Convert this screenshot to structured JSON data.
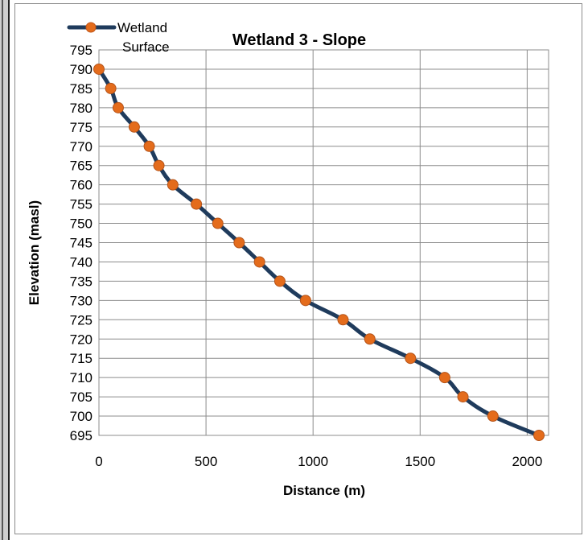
{
  "chart_data": {
    "type": "line",
    "title": "Wetland  3 - Slope",
    "xlabel": "Distance (m)",
    "ylabel": "Elevation (masl)",
    "xlim": [
      0,
      2100
    ],
    "ylim": [
      695,
      795
    ],
    "xticks": [
      0,
      500,
      1000,
      1500,
      2000
    ],
    "yticks": [
      695,
      700,
      705,
      710,
      715,
      720,
      725,
      730,
      735,
      740,
      745,
      750,
      755,
      760,
      765,
      770,
      775,
      780,
      785,
      790,
      795
    ],
    "grid": true,
    "legend": {
      "position": "top-left",
      "label_line1": "Wetland",
      "label_line2": "Surface"
    },
    "series": [
      {
        "name": "Wetland Surface",
        "line_color": "#1f3b5c",
        "marker_color": "#e46c1c",
        "points": [
          [
            0,
            790
          ],
          [
            55,
            785
          ],
          [
            90,
            780
          ],
          [
            165,
            775
          ],
          [
            235,
            770
          ],
          [
            280,
            765
          ],
          [
            345,
            760
          ],
          [
            455,
            755
          ],
          [
            555,
            750
          ],
          [
            655,
            745
          ],
          [
            750,
            740
          ],
          [
            845,
            735
          ],
          [
            965,
            730
          ],
          [
            1140,
            725
          ],
          [
            1265,
            720
          ],
          [
            1455,
            715
          ],
          [
            1615,
            710
          ],
          [
            1700,
            705
          ],
          [
            1840,
            700
          ],
          [
            2055,
            695
          ]
        ]
      }
    ]
  }
}
